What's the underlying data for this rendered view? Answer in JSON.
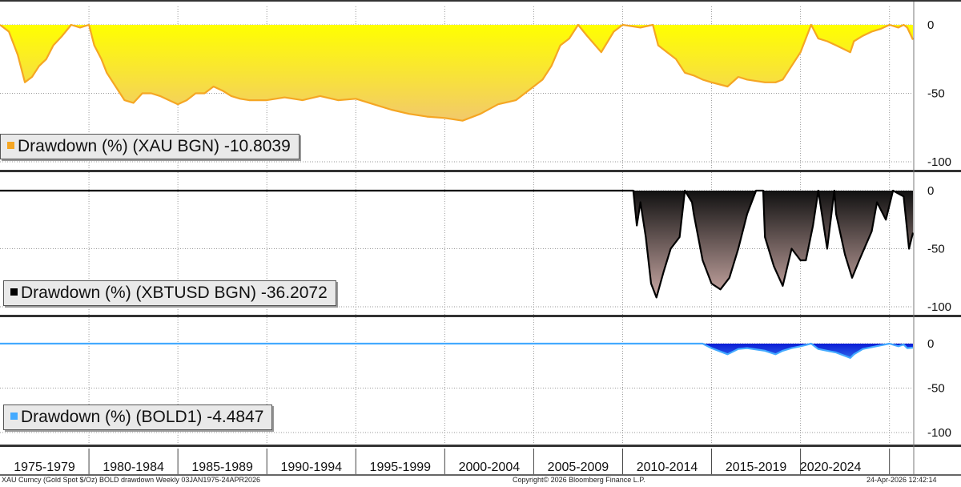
{
  "chart_data": {
    "type": "area",
    "x_ticks": [
      "1975-1979",
      "1980-1984",
      "1985-1989",
      "1990-1994",
      "1995-1999",
      "2000-2004",
      "2005-2009",
      "2010-2014",
      "2015-2019",
      "2020-2024"
    ],
    "x_range": [
      1975.0,
      2026.32
    ],
    "grid": true,
    "panels": [
      {
        "legend": "Drawdown (%) (XAU BGN) -10.8039",
        "color": "#f5a623",
        "fill_top": "#ffff00",
        "fill_bottom": "#f2c96b",
        "ylim": [
          -100,
          0
        ],
        "yticks": [
          "0",
          "-50",
          "-100"
        ],
        "x": [
          1975.0,
          1975.5,
          1976.0,
          1976.4,
          1976.8,
          1977.2,
          1977.6,
          1978.0,
          1978.5,
          1979.0,
          1979.5,
          1980.0,
          1980.3,
          1980.7,
          1981.0,
          1981.5,
          1982.0,
          1982.5,
          1983.0,
          1983.5,
          1984.0,
          1984.5,
          1985.0,
          1985.5,
          1986.0,
          1986.5,
          1987.0,
          1987.5,
          1988.0,
          1988.5,
          1989.0,
          1990.0,
          1991.0,
          1992.0,
          1993.0,
          1994.0,
          1995.0,
          1996.0,
          1997.0,
          1998.0,
          1999.0,
          2000.0,
          2001.0,
          2002.0,
          2003.0,
          2004.0,
          2005.0,
          2005.5,
          2006.0,
          2006.5,
          2007.0,
          2007.5,
          2008.0,
          2008.8,
          2009.5,
          2010.0,
          2011.0,
          2011.7,
          2012.0,
          2012.5,
          2013.0,
          2013.5,
          2014.0,
          2014.5,
          2015.0,
          2015.9,
          2016.5,
          2017.0,
          2018.0,
          2018.6,
          2019.0,
          2019.5,
          2020.0,
          2020.6,
          2021.0,
          2021.5,
          2022.0,
          2022.8,
          2023.0,
          2023.5,
          2024.0,
          2024.5,
          2025.0,
          2025.5,
          2025.8,
          2026.0,
          2026.32
        ],
        "y": [
          0,
          -5,
          -22,
          -42,
          -38,
          -30,
          -25,
          -15,
          -8,
          0,
          -2,
          0,
          -15,
          -25,
          -35,
          -45,
          -55,
          -57,
          -50,
          -50,
          -52,
          -55,
          -58,
          -55,
          -50,
          -50,
          -45,
          -48,
          -52,
          -54,
          -55,
          -55,
          -53,
          -55,
          -52,
          -55,
          -54,
          -58,
          -62,
          -65,
          -67,
          -68,
          -70,
          -65,
          -58,
          -55,
          -45,
          -40,
          -30,
          -15,
          -10,
          0,
          -8,
          -20,
          -5,
          0,
          -2,
          0,
          -15,
          -20,
          -25,
          -35,
          -37,
          -40,
          -42,
          -45,
          -38,
          -40,
          -42,
          -42,
          -40,
          -30,
          -20,
          0,
          -10,
          -12,
          -15,
          -20,
          -12,
          -8,
          -5,
          -3,
          0,
          -2,
          0,
          -2,
          -10.8
        ]
      },
      {
        "legend": "Drawdown (%) (XBTUSD BGN) -36.2072",
        "color": "#000000",
        "fill_top": "#111111",
        "fill_bottom": "#c9a8a4",
        "ylim": [
          -100,
          0
        ],
        "yticks": [
          "0",
          "-50",
          "-100"
        ],
        "x": [
          1975.0,
          2010.6,
          2010.8,
          2011.0,
          2011.3,
          2011.6,
          2011.9,
          2012.3,
          2012.7,
          2013.2,
          2013.5,
          2013.9,
          2014.0,
          2014.5,
          2015.0,
          2015.5,
          2016.0,
          2016.5,
          2017.0,
          2017.5,
          2017.9,
          2018.0,
          2018.5,
          2019.0,
          2019.5,
          2020.0,
          2020.3,
          2020.7,
          2021.0,
          2021.3,
          2021.5,
          2021.9,
          2022.0,
          2022.5,
          2022.9,
          2023.3,
          2024.0,
          2024.3,
          2024.8,
          2025.2,
          2025.8,
          2026.1,
          2026.32
        ],
        "y": [
          0,
          0,
          -30,
          -10,
          -40,
          -80,
          -92,
          -70,
          -50,
          -40,
          0,
          -10,
          -20,
          -60,
          -80,
          -85,
          -75,
          -50,
          -20,
          0,
          0,
          -40,
          -65,
          -82,
          -50,
          -60,
          -60,
          -30,
          0,
          -30,
          -50,
          0,
          -20,
          -55,
          -75,
          -60,
          -35,
          -10,
          -25,
          0,
          -5,
          -50,
          -36.2
        ]
      },
      {
        "legend": "Drawdown (%) (BOLD1) -4.4847",
        "color": "#44aaff",
        "fill_top": "#0a1cd6",
        "fill_bottom": "#2d63e8",
        "ylim": [
          -100,
          0
        ],
        "yticks": [
          "0",
          "-50",
          "-100"
        ],
        "x": [
          1975.0,
          2014.5,
          2015.0,
          2015.9,
          2016.5,
          2017.0,
          2018.0,
          2018.6,
          2019.0,
          2019.5,
          2020.0,
          2020.6,
          2021.0,
          2021.5,
          2022.0,
          2022.8,
          2023.0,
          2023.5,
          2024.0,
          2024.5,
          2025.0,
          2025.5,
          2025.8,
          2026.0,
          2026.32
        ],
        "y": [
          0,
          0,
          -5,
          -12,
          -6,
          -5,
          -8,
          -12,
          -8,
          -5,
          -3,
          0,
          -6,
          -8,
          -10,
          -16,
          -12,
          -6,
          -4,
          -2,
          0,
          -3,
          -1,
          -5,
          -4.5
        ]
      }
    ]
  },
  "footer": {
    "left": "XAU Curncy (Gold Spot  $/Oz) BOLD drawdown Weekly 03JAN1975-24APR2026",
    "center": "Copyright© 2026 Bloomberg Finance L.P.",
    "right": "24-Apr-2026  12:42:14"
  }
}
